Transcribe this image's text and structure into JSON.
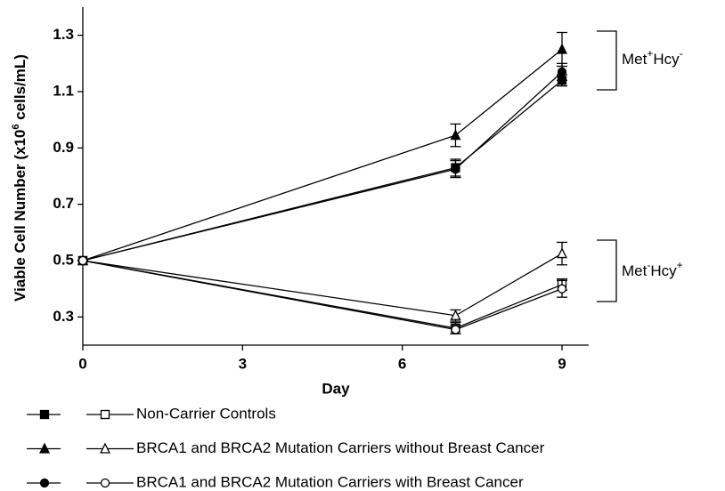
{
  "chart_data": {
    "type": "line",
    "ylabel_parts": [
      "Viable Cell Number (x10",
      "6",
      " cells/mL)"
    ],
    "xlabel": "Day",
    "x": [
      0,
      7,
      9
    ],
    "xlim": [
      0,
      9.5
    ],
    "xticks": [
      0,
      3,
      6,
      9
    ],
    "ylim": [
      0.2,
      1.4
    ],
    "yticks": [
      0.3,
      0.5,
      0.7,
      0.9,
      1.1,
      1.3
    ],
    "color": "#000000",
    "series": [
      {
        "name": "Non-Carrier Controls",
        "marker": "square",
        "met_plus": {
          "values": [
            0.5,
            0.83,
            1.14
          ],
          "errors": [
            0,
            0.03,
            0.02
          ]
        },
        "met_minus": {
          "values": [
            0.5,
            0.26,
            0.415
          ],
          "errors": [
            0,
            0.02,
            0.02
          ]
        }
      },
      {
        "name": "BRCA1 and BRCA2 Mutation Carriers without Breast Cancer",
        "marker": "triangle",
        "met_plus": {
          "values": [
            0.5,
            0.945,
            1.25
          ],
          "errors": [
            0,
            0.04,
            0.06
          ]
        },
        "met_minus": {
          "values": [
            0.5,
            0.305,
            0.525
          ],
          "errors": [
            0,
            0.02,
            0.04
          ]
        }
      },
      {
        "name": "BRCA1 and BRCA2 Mutation Carriers with Breast Cancer",
        "marker": "circle",
        "met_plus": {
          "values": [
            0.5,
            0.825,
            1.17
          ],
          "errors": [
            0,
            0.03,
            0.03
          ]
        },
        "met_minus": {
          "values": [
            0.5,
            0.255,
            0.4
          ],
          "errors": [
            0,
            0.015,
            0.03
          ]
        }
      }
    ],
    "annotations": [
      {
        "parts": [
          "Met",
          "+",
          "Hcy",
          "-"
        ]
      },
      {
        "parts": [
          "Met",
          "-",
          "Hcy",
          "+"
        ]
      }
    ]
  }
}
